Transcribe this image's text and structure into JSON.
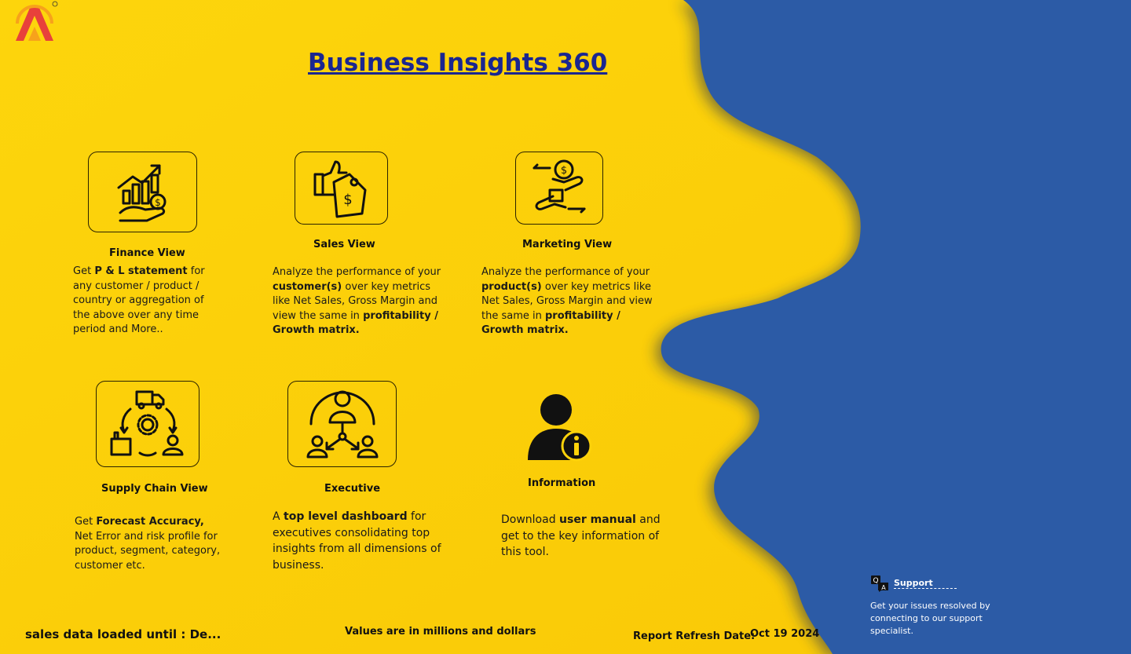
{
  "header": {
    "title": "Business Insights 360"
  },
  "logo": {
    "icon": "atliq-logo-icon",
    "colors": [
      "#e8413b",
      "#f7a21b"
    ]
  },
  "colors": {
    "yellow": "#fdd20a",
    "blue": "#2a5aa8",
    "title": "#1a2690"
  },
  "tiles": [
    {
      "label": "Finance View",
      "icon": "finance-growth-icon",
      "desc": {
        "p1": "Get  ",
        "b1": "P & L statement",
        "p2": " for any customer / product / country or aggregation of the above over any time period and More.."
      }
    },
    {
      "label": "Sales View",
      "icon": "thumbs-up-price-tag-icon",
      "desc": {
        "p1": "  Analyze  the performance of your ",
        "b1": "customer(s)",
        "p2": " over key metrics like Net Sales, Gross  Margin and view the same in ",
        "b2": "profitability / Growth matrix."
      }
    },
    {
      "label": "Marketing View",
      "icon": "money-exchange-hands-icon",
      "desc": {
        "p1": "  Analyze  the performance of your ",
        "b1": "product(s)",
        "p2": " over key metrics like Net Sales, Gross Margin and view the same in ",
        "b2": "profitability / Growth matrix."
      }
    },
    {
      "label": "Supply Chain View",
      "icon": "supply-chain-cycle-icon",
      "desc": {
        "p1": " Get ",
        "b1": "Forecast Accuracy,",
        "p2": " Net Error and risk profile for product, segment, category, customer etc."
      }
    },
    {
      "label": "Executive",
      "icon": "executive-hierarchy-icon",
      "desc": {
        "p1": "  A ",
        "b1": "top level dashboard",
        "p2": " for executives consolidating top insights from all dimensions of business."
      }
    },
    {
      "label": "Information",
      "icon": "user-info-icon",
      "desc": {
        "p1": "Download ",
        "b1": "user manual",
        "p2": " and get to the key information of this tool."
      }
    }
  ],
  "footer": {
    "loaded": "sales data loaded until : De...",
    "values_note": "Values are in millions and dollars",
    "refresh_label": "Report Refresh Date:",
    "refresh_date": "Oct 19 2024"
  },
  "support": {
    "icon": "qa-chat-icon",
    "title": "Support",
    "text": "Get your issues resolved by connecting to our support specialist."
  }
}
